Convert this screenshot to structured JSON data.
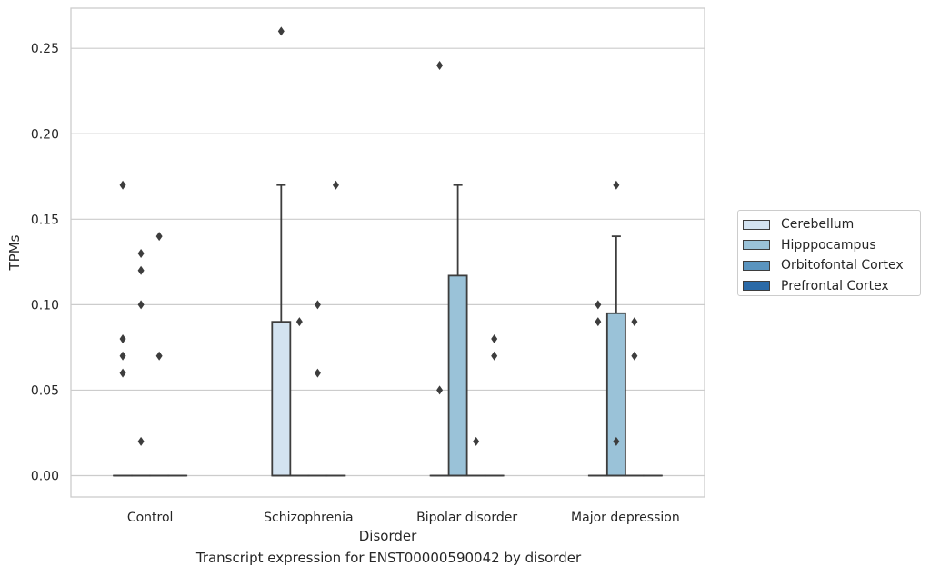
{
  "caption": "Transcript expression for ENST00000590042 by disorder",
  "chart_data": {
    "type": "box",
    "xlabel": "Disorder",
    "ylabel": "TPMs",
    "ylim": [
      -0.0125,
      0.2735
    ],
    "y_ticks": [
      "0.00",
      "0.05",
      "0.10",
      "0.15",
      "0.20",
      "0.25"
    ],
    "y_tick_values": [
      0,
      0.05,
      0.1,
      0.15,
      0.2,
      0.25
    ],
    "grid": "horizontal",
    "legend_position": "right-outside",
    "categories": [
      "Control",
      "Schizophrenia",
      "Bipolar disorder",
      "Major depression"
    ],
    "series": [
      {
        "name": "Cerebellum",
        "color": "#d3e3f1",
        "boxes": [
          {
            "q1": 0,
            "median": 0,
            "q3": 0,
            "whisker_low": 0,
            "whisker_high": 0,
            "outliers": [
              0.06,
              0.07,
              0.08,
              0.17
            ]
          },
          {
            "q1": 0,
            "median": 0,
            "q3": 0.09,
            "whisker_low": 0,
            "whisker_high": 0.17,
            "outliers": [
              0.26
            ]
          },
          {
            "q1": 0,
            "median": 0,
            "q3": 0,
            "whisker_low": 0,
            "whisker_high": 0,
            "outliers": [
              0.05,
              0.24
            ]
          },
          {
            "q1": 0,
            "median": 0,
            "q3": 0,
            "whisker_low": 0,
            "whisker_high": 0,
            "outliers": [
              0.09,
              0.1
            ]
          }
        ]
      },
      {
        "name": "Hipppocampus",
        "color": "#9ac2d8",
        "boxes": [
          {
            "q1": 0,
            "median": 0,
            "q3": 0,
            "whisker_low": 0,
            "whisker_high": 0,
            "outliers": [
              0.02,
              0.1,
              0.12,
              0.13
            ]
          },
          {
            "q1": 0,
            "median": 0,
            "q3": 0,
            "whisker_low": 0,
            "whisker_high": 0,
            "outliers": [
              0.09
            ]
          },
          {
            "q1": 0,
            "median": 0,
            "q3": 0.117,
            "whisker_low": 0,
            "whisker_high": 0.17,
            "outliers": []
          },
          {
            "q1": 0,
            "median": 0,
            "q3": 0.095,
            "whisker_low": 0,
            "whisker_high": 0.14,
            "outliers": [
              0.02,
              0.17
            ]
          }
        ]
      },
      {
        "name": "Orbitofontal Cortex",
        "color": "#5a94bf",
        "boxes": [
          {
            "q1": 0,
            "median": 0,
            "q3": 0,
            "whisker_low": 0,
            "whisker_high": 0,
            "outliers": [
              0.07,
              0.14
            ]
          },
          {
            "q1": 0,
            "median": 0,
            "q3": 0,
            "whisker_low": 0,
            "whisker_high": 0,
            "outliers": [
              0.06,
              0.1
            ]
          },
          {
            "q1": 0,
            "median": 0,
            "q3": 0,
            "whisker_low": 0,
            "whisker_high": 0,
            "outliers": [
              0.02
            ]
          },
          {
            "q1": 0,
            "median": 0,
            "q3": 0,
            "whisker_low": 0,
            "whisker_high": 0,
            "outliers": [
              0.07,
              0.09
            ]
          }
        ]
      },
      {
        "name": "Prefrontal Cortex",
        "color": "#2b6aa7",
        "boxes": [
          {
            "q1": 0,
            "median": 0,
            "q3": 0,
            "whisker_low": 0,
            "whisker_high": 0,
            "outliers": []
          },
          {
            "q1": 0,
            "median": 0,
            "q3": 0,
            "whisker_low": 0,
            "whisker_high": 0,
            "outliers": [
              0.17
            ]
          },
          {
            "q1": 0,
            "median": 0,
            "q3": 0,
            "whisker_low": 0,
            "whisker_high": 0,
            "outliers": [
              0.07,
              0.08
            ]
          },
          {
            "q1": 0,
            "median": 0,
            "q3": 0,
            "whisker_low": 0,
            "whisker_high": 0,
            "outliers": []
          }
        ]
      }
    ]
  }
}
